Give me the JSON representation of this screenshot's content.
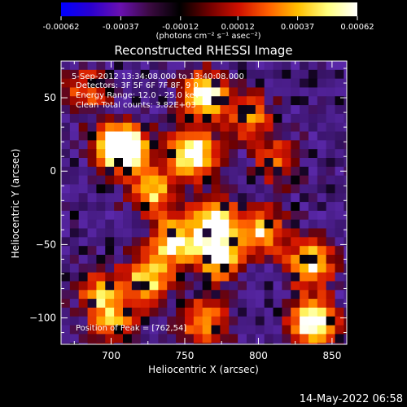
{
  "colorbar": {
    "tick_labels": [
      "-0.00062",
      "-0.00037",
      "-0.00012",
      "0.00012",
      "0.00037",
      "0.00062"
    ],
    "range": [
      -0.00062,
      0.00062
    ],
    "unit_label": "(photons cm⁻² s⁻¹ asec⁻²)",
    "colors": [
      "#0000ff",
      "#2a00d0",
      "#6a10b0",
      "#3a0a40",
      "#000000",
      "#700000",
      "#d01000",
      "#ff6000",
      "#ffc000",
      "#ffff80",
      "#ffffff"
    ]
  },
  "title": "Reconstructed RHESSI Image",
  "annotations": {
    "time_range": "5-Sep-2012 13:34:08.000 to 13:40:08.000",
    "detectors": "Detectors: 3F 5F 6F 7F 8F, 9 0",
    "energy_range": "Energy Range: 12.0 - 25.0 keV",
    "clean": "Clean    Total counts: 3.82E+03",
    "peak": "Position of Peak = [762,54]"
  },
  "footer_date": "14-May-2022 06:58",
  "chart_data": {
    "type": "heatmap",
    "title": "Reconstructed RHESSI Image",
    "xlabel": "Heliocentric X (arcsec)",
    "ylabel": "Heliocentric Y (arcsec)",
    "xlim": [
      666,
      860
    ],
    "ylim": [
      -118,
      75
    ],
    "xticks": [
      700,
      750,
      800,
      850
    ],
    "yticks": [
      50,
      0,
      -50,
      -100
    ],
    "grid": false,
    "colorbar_range": [
      -0.00062,
      0.00062
    ],
    "hot_spots": [
      {
        "x": 752,
        "y": 15,
        "level": 0.92
      },
      {
        "x": 708,
        "y": 18,
        "level": 0.7
      },
      {
        "x": 760,
        "y": 54,
        "level": 0.85
      },
      {
        "x": 725,
        "y": -12,
        "level": 0.65
      },
      {
        "x": 768,
        "y": -30,
        "level": 0.8
      },
      {
        "x": 770,
        "y": -55,
        "level": 0.85
      },
      {
        "x": 740,
        "y": -45,
        "level": 0.75
      },
      {
        "x": 722,
        "y": -70,
        "level": 0.7
      },
      {
        "x": 690,
        "y": -80,
        "level": 0.55
      },
      {
        "x": 800,
        "y": -38,
        "level": 0.65
      },
      {
        "x": 832,
        "y": -60,
        "level": 0.75
      },
      {
        "x": 835,
        "y": -100,
        "level": 0.95
      },
      {
        "x": 700,
        "y": 20,
        "level": 0.6
      },
      {
        "x": 680,
        "y": 58,
        "level": 0.45
      },
      {
        "x": 790,
        "y": 40,
        "level": 0.55
      },
      {
        "x": 760,
        "y": -100,
        "level": 0.6
      },
      {
        "x": 810,
        "y": 10,
        "level": 0.45
      },
      {
        "x": 700,
        "y": -100,
        "level": 0.55
      }
    ]
  }
}
